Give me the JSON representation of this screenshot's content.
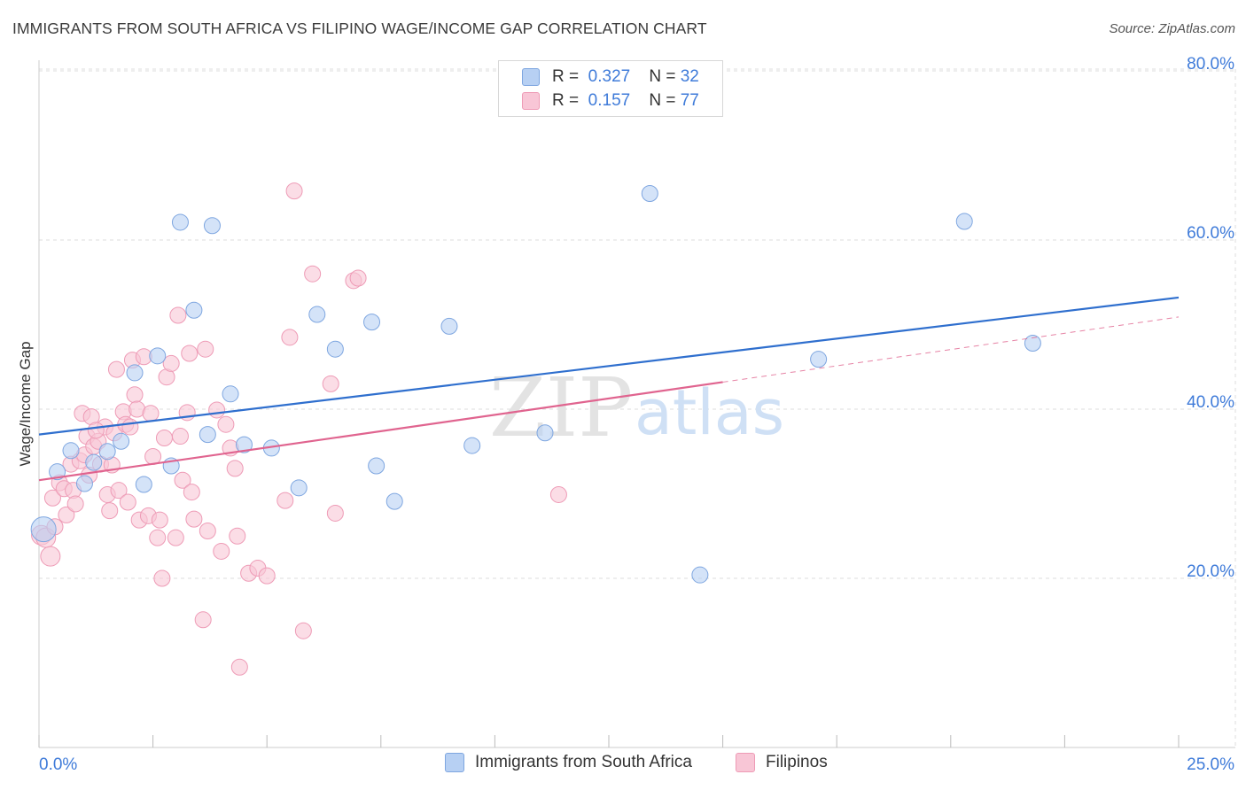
{
  "title": "IMMIGRANTS FROM SOUTH AFRICA VS FILIPINO WAGE/INCOME GAP CORRELATION CHART",
  "source": "Source: ZipAtlas.com",
  "watermark": {
    "zip": "ZIP",
    "atlas": "atlas"
  },
  "legend": {
    "rows": [
      {
        "r_label": "R =",
        "r_value": "0.327",
        "n_label": "N =",
        "n_value": "32"
      },
      {
        "r_label": "R =",
        "r_value": "0.157",
        "n_label": "N =",
        "n_value": "77"
      }
    ]
  },
  "colors": {
    "blue_fill": "#b7d0f3",
    "blue_stroke": "#7ea6e0",
    "blue_line": "#2f6fce",
    "pink_fill": "#f8c6d6",
    "pink_stroke": "#ee9bb6",
    "pink_line": "#e0648f",
    "tick_label": "#3f7bd9",
    "grid": "#dcdcdc"
  },
  "chart_data": {
    "type": "scatter",
    "title": "IMMIGRANTS FROM SOUTH AFRICA VS FILIPINO WAGE/INCOME GAP CORRELATION CHART",
    "xlabel": "",
    "ylabel": "Wage/Income Gap",
    "xlim": [
      0,
      25
    ],
    "ylim": [
      0,
      82
    ],
    "x_tick_labels": [
      "0.0%",
      "25.0%"
    ],
    "y_ticks": [
      20,
      40,
      60,
      80
    ],
    "y_tick_labels": [
      "20.0%",
      "40.0%",
      "60.0%",
      "80.0%"
    ],
    "grid": true,
    "legend_position": "top-center",
    "series": [
      {
        "name": "Immigrants from South Africa",
        "color": "#b7d0f3",
        "trend": {
          "x0": 0,
          "y0": 37.0,
          "x1": 25,
          "y1": 53.2
        },
        "points": [
          [
            0.1,
            25.8
          ],
          [
            0.4,
            32.6
          ],
          [
            0.7,
            35.1
          ],
          [
            1.0,
            31.2
          ],
          [
            1.2,
            33.7
          ],
          [
            1.5,
            35.0
          ],
          [
            1.8,
            36.2
          ],
          [
            2.1,
            44.3
          ],
          [
            2.3,
            31.1
          ],
          [
            2.6,
            46.3
          ],
          [
            2.9,
            33.3
          ],
          [
            3.1,
            62.1
          ],
          [
            3.4,
            51.7
          ],
          [
            3.7,
            37.0
          ],
          [
            3.8,
            61.7
          ],
          [
            4.2,
            41.8
          ],
          [
            4.5,
            35.8
          ],
          [
            5.1,
            35.4
          ],
          [
            5.7,
            30.7
          ],
          [
            6.1,
            51.2
          ],
          [
            6.5,
            47.1
          ],
          [
            7.3,
            50.3
          ],
          [
            7.4,
            33.3
          ],
          [
            7.8,
            29.1
          ],
          [
            9.0,
            49.8
          ],
          [
            9.5,
            35.7
          ],
          [
            11.1,
            37.2
          ],
          [
            13.4,
            65.5
          ],
          [
            14.5,
            20.4
          ],
          [
            17.1,
            45.9
          ],
          [
            20.3,
            62.2
          ],
          [
            21.8,
            47.8
          ]
        ]
      },
      {
        "name": "Filipinos",
        "color": "#f8c6d6",
        "trend": {
          "x0": 0,
          "y0": 31.6,
          "x1": 15,
          "y1": 43.2
        },
        "trend_ext": {
          "x0": 15,
          "y0": 43.2,
          "x1": 25,
          "y1": 50.9
        },
        "points": [
          [
            0.05,
            25.1
          ],
          [
            0.15,
            24.8
          ],
          [
            0.25,
            22.6
          ],
          [
            0.35,
            26.1
          ],
          [
            0.3,
            29.5
          ],
          [
            0.45,
            31.3
          ],
          [
            0.55,
            30.6
          ],
          [
            0.6,
            27.5
          ],
          [
            0.7,
            33.5
          ],
          [
            0.75,
            30.4
          ],
          [
            0.8,
            28.8
          ],
          [
            0.9,
            33.9
          ],
          [
            0.95,
            39.5
          ],
          [
            1.0,
            34.6
          ],
          [
            1.05,
            36.8
          ],
          [
            1.1,
            32.2
          ],
          [
            1.15,
            39.1
          ],
          [
            1.2,
            35.6
          ],
          [
            1.3,
            36.2
          ],
          [
            1.35,
            33.5
          ],
          [
            1.45,
            37.9
          ],
          [
            1.5,
            29.9
          ],
          [
            1.55,
            28.0
          ],
          [
            1.6,
            33.4
          ],
          [
            1.65,
            37.2
          ],
          [
            1.7,
            44.7
          ],
          [
            1.75,
            30.4
          ],
          [
            1.85,
            39.7
          ],
          [
            1.9,
            38.2
          ],
          [
            1.95,
            29.0
          ],
          [
            2.0,
            37.9
          ],
          [
            2.05,
            45.8
          ],
          [
            2.1,
            41.7
          ],
          [
            2.15,
            40.0
          ],
          [
            2.2,
            26.9
          ],
          [
            2.3,
            46.2
          ],
          [
            2.4,
            27.4
          ],
          [
            2.45,
            39.5
          ],
          [
            2.5,
            34.4
          ],
          [
            2.6,
            24.8
          ],
          [
            2.65,
            26.9
          ],
          [
            2.7,
            20.0
          ],
          [
            2.75,
            36.6
          ],
          [
            2.8,
            43.8
          ],
          [
            2.9,
            45.4
          ],
          [
            3.0,
            24.8
          ],
          [
            3.05,
            51.1
          ],
          [
            3.1,
            36.8
          ],
          [
            3.15,
            31.6
          ],
          [
            3.25,
            39.6
          ],
          [
            3.3,
            46.6
          ],
          [
            3.35,
            30.2
          ],
          [
            3.4,
            27.0
          ],
          [
            3.6,
            15.1
          ],
          [
            3.65,
            47.1
          ],
          [
            3.7,
            25.6
          ],
          [
            3.9,
            39.9
          ],
          [
            4.0,
            23.2
          ],
          [
            4.2,
            35.4
          ],
          [
            4.3,
            33.0
          ],
          [
            4.35,
            25.0
          ],
          [
            4.4,
            9.5
          ],
          [
            4.6,
            20.6
          ],
          [
            4.8,
            21.2
          ],
          [
            5.0,
            20.3
          ],
          [
            5.4,
            29.2
          ],
          [
            5.5,
            48.5
          ],
          [
            5.6,
            65.8
          ],
          [
            5.8,
            13.8
          ],
          [
            6.0,
            56.0
          ],
          [
            6.4,
            43.0
          ],
          [
            6.5,
            27.7
          ],
          [
            6.9,
            55.2
          ],
          [
            7.0,
            55.5
          ],
          [
            11.4,
            29.9
          ],
          [
            4.1,
            38.2
          ],
          [
            1.25,
            37.5
          ]
        ]
      }
    ]
  },
  "bottom_legend": [
    "Immigrants from South Africa",
    "Filipinos"
  ]
}
